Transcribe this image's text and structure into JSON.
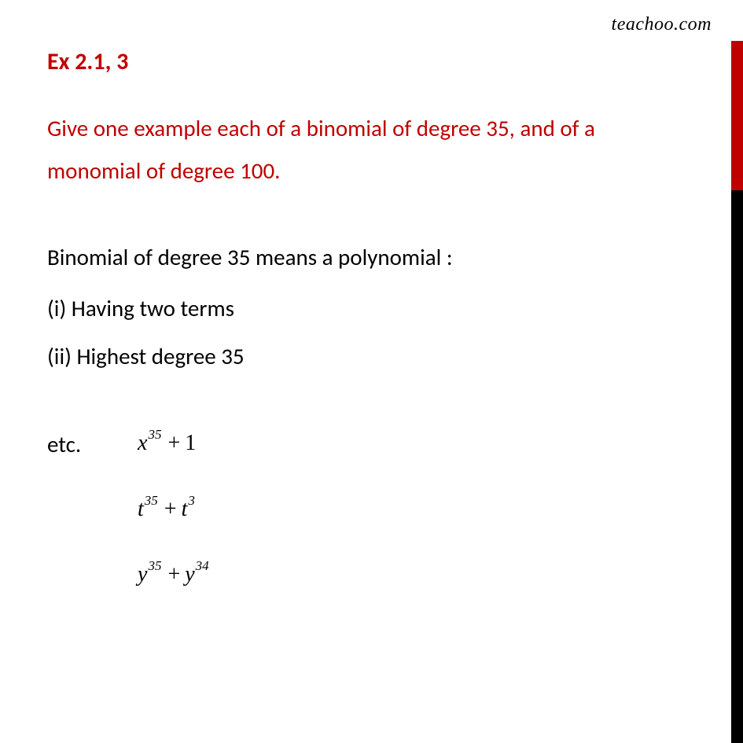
{
  "watermark": "teachoo.com",
  "heading": "Ex 2.1, 3",
  "question": "Give one example each of a binomial of degree 35, and of a monomial of degree 100.",
  "definition": "Binomial of degree 35 means a polynomial :",
  "item1": "(i) Having  two  terms",
  "item2": "(ii) Highest degree 35",
  "etc_label": "etc.",
  "expr1": {
    "base1": "x",
    "exp1": "35",
    "op": "+",
    "term2": "1"
  },
  "expr2": {
    "base1": "t",
    "exp1": "35",
    "op": "+",
    "base2": "t",
    "exp2": "3"
  },
  "expr3": {
    "base1": "y",
    "exp1": "35",
    "op": "+",
    "base2": "y",
    "exp2": "34"
  },
  "colors": {
    "accent": "#c00000",
    "black": "#000000",
    "background": "#ffffff"
  }
}
